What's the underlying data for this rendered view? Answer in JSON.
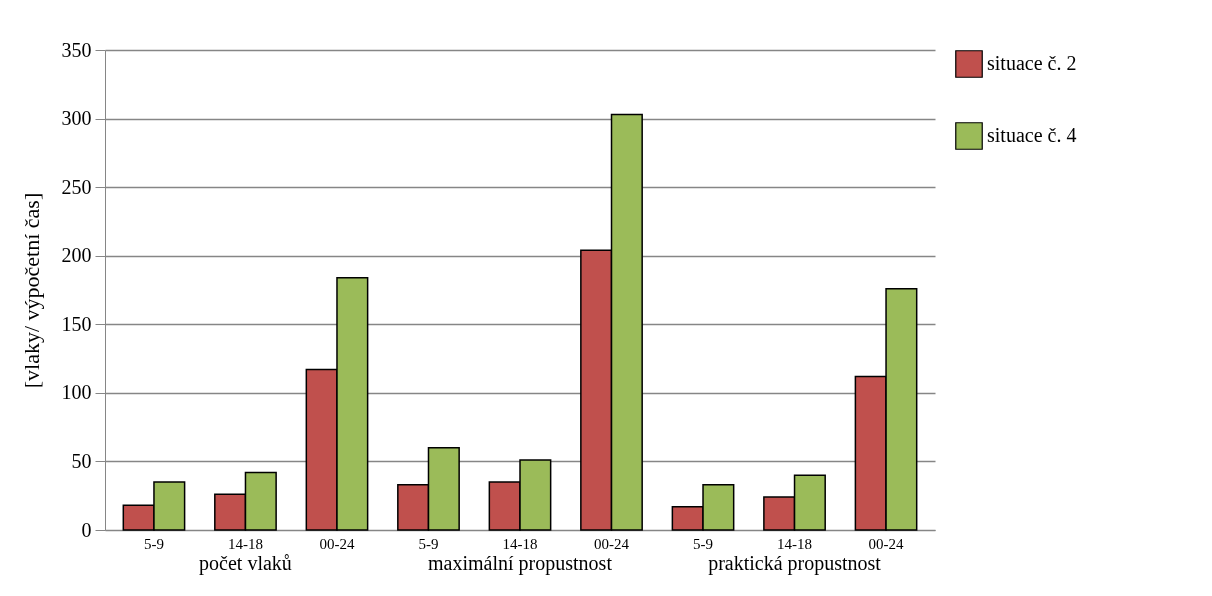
{
  "chart_data": {
    "type": "bar",
    "ylabel": "[vlaky/ výpočetní čas]",
    "categories": [
      "5-9",
      "14-18",
      "00-24",
      "5-9",
      "14-18",
      "00-24",
      "5-9",
      "14-18",
      "00-24"
    ],
    "annotations": [
      "počet vlaků",
      "maximální propustnost",
      "praktická propustnost"
    ],
    "series": [
      {
        "name": "situace č. 2",
        "color": "#c0504d",
        "values": [
          18,
          26,
          117,
          33,
          35,
          204,
          17,
          24,
          112
        ]
      },
      {
        "name": "situace č. 4",
        "color": "#9bbb59",
        "values": [
          35,
          42,
          184,
          60,
          51,
          303,
          33,
          40,
          176
        ]
      }
    ],
    "ylim": [
      0,
      350
    ],
    "yticks": [
      0,
      50,
      100,
      150,
      200,
      250,
      300,
      350
    ],
    "grid": "y",
    "legend": "right"
  }
}
